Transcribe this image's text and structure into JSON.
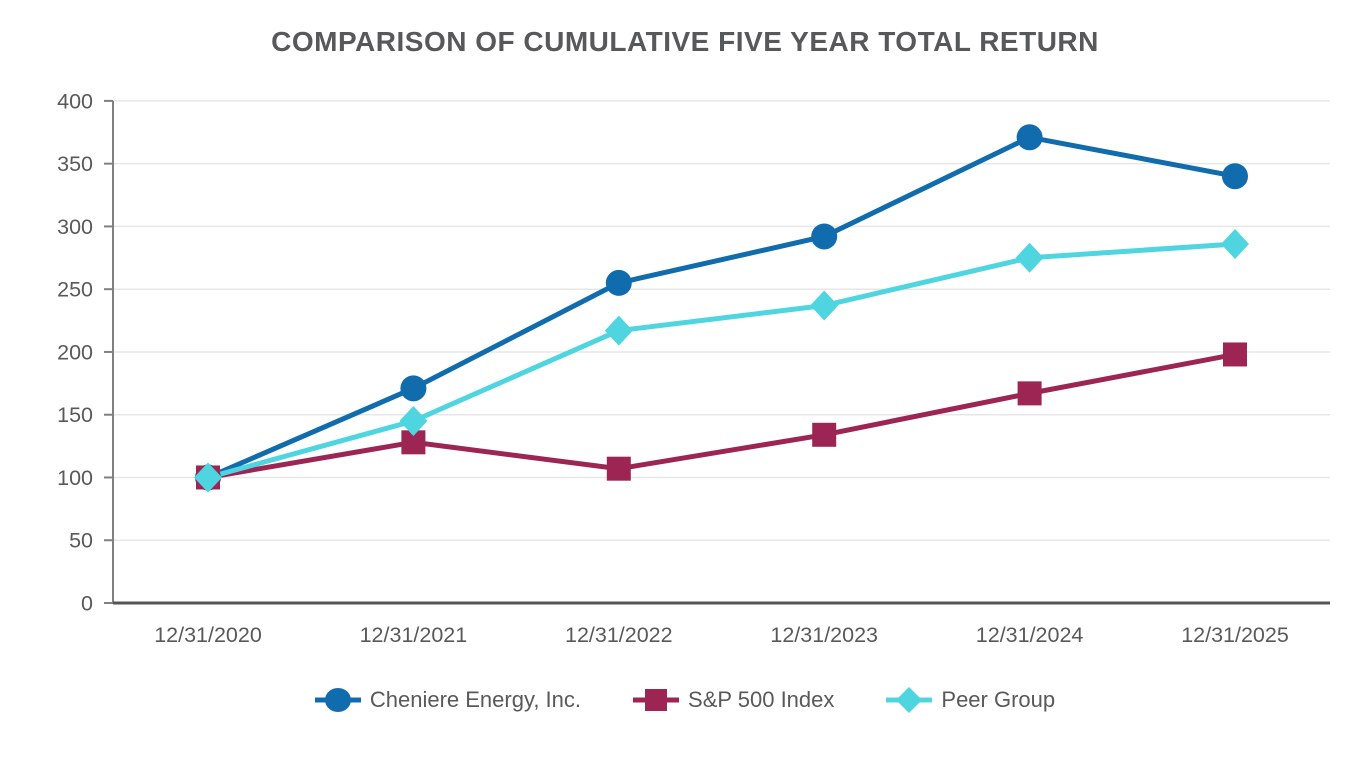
{
  "title": "COMPARISON OF CUMULATIVE FIVE YEAR TOTAL RETURN",
  "chart_data": {
    "type": "line",
    "title": "COMPARISON OF CUMULATIVE FIVE YEAR TOTAL RETURN",
    "categories": [
      "12/31/2020",
      "12/31/2021",
      "12/31/2022",
      "12/31/2023",
      "12/31/2024",
      "12/31/2025"
    ],
    "series": [
      {
        "name": "Cheniere Energy, Inc.",
        "marker": "circle",
        "color": "#116cad",
        "values": [
          100,
          171,
          255,
          292,
          371,
          340
        ]
      },
      {
        "name": "S&P 500 Index",
        "marker": "square",
        "color": "#9d2553",
        "values": [
          100,
          128,
          107,
          134,
          167,
          198
        ]
      },
      {
        "name": "Peer Group",
        "marker": "diamond",
        "color": "#4fd5e0",
        "values": [
          100,
          145,
          217,
          237,
          275,
          286
        ]
      }
    ],
    "xlabel": "",
    "ylabel": "",
    "ylim": [
      0,
      400
    ],
    "yticks": [
      0,
      50,
      100,
      150,
      200,
      250,
      300,
      350,
      400
    ],
    "grid": "horizontal",
    "legend_position": "bottom"
  }
}
